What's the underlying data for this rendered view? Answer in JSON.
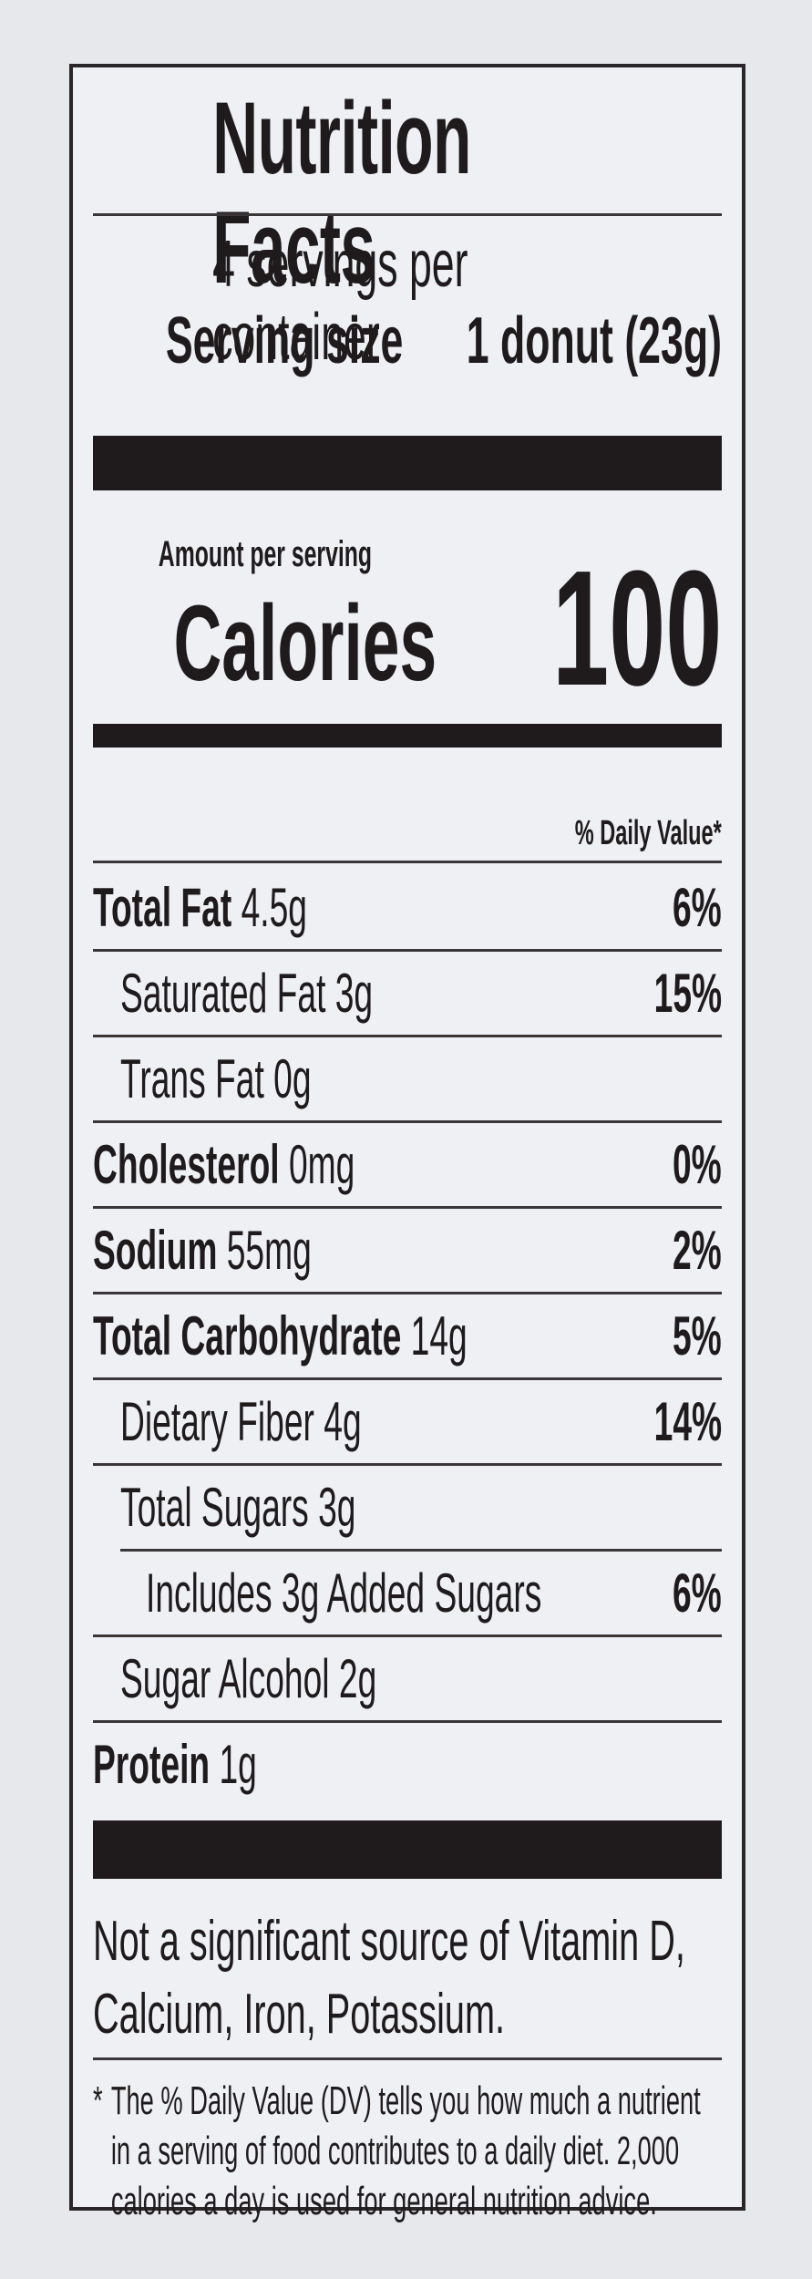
{
  "label": {
    "title": "Nutrition Facts",
    "servings_per_container": "4 servings per container",
    "serving_size_label": "Serving size",
    "serving_size_value": "1 donut (23g)",
    "amount_per_serving": "Amount per serving",
    "calories_label": "Calories",
    "calories_value": "100",
    "daily_value_header": "% Daily Value*",
    "nutrients": [
      {
        "name": "Total Fat",
        "amount": "4.5g",
        "dv": "6%"
      },
      {
        "name": "Saturated Fat",
        "amount": "3g",
        "dv": "15%"
      },
      {
        "name": "Trans Fat",
        "amount": "0g",
        "dv": ""
      },
      {
        "name": "Cholesterol",
        "amount": "0mg",
        "dv": "0%"
      },
      {
        "name": "Sodium",
        "amount": "55mg",
        "dv": "2%"
      },
      {
        "name": "Total Carbohydrate",
        "amount": "14g",
        "dv": "5%"
      },
      {
        "name": "Dietary Fiber",
        "amount": "4g",
        "dv": "14%"
      },
      {
        "name": "Total Sugars",
        "amount": "3g",
        "dv": ""
      },
      {
        "name": "Includes 3g Added Sugars",
        "amount": "",
        "dv": "6%"
      },
      {
        "name": "Sugar Alcohol",
        "amount": "2g",
        "dv": ""
      },
      {
        "name": "Protein",
        "amount": "1g",
        "dv": ""
      }
    ],
    "not_significant": "Not a significant source of Vitamin D, Calcium, Iron, Potassium.",
    "footnote_star": "*",
    "footnote": "The % Daily Value (DV) tells you how much a nutrient in a serving of food contributes to a daily diet. 2,000 calories a day is used for general nutrition advice."
  }
}
